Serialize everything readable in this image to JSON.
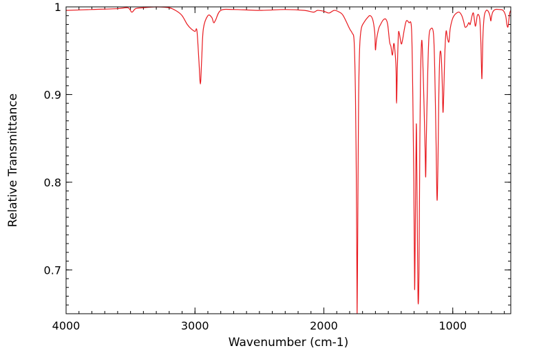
{
  "chart_data": {
    "type": "line",
    "title": "",
    "xlabel": "Wavenumber (cm-1)",
    "ylabel": "Relative Transmittance",
    "xlim": [
      4000,
      550
    ],
    "ylim": [
      0.65,
      1.0
    ],
    "x_reversed": true,
    "grid": false,
    "legend": "none",
    "x_ticks": [
      {
        "value": 4000,
        "label": "4000"
      },
      {
        "value": 3000,
        "label": "3000"
      },
      {
        "value": 2000,
        "label": "2000"
      },
      {
        "value": 1000,
        "label": "1000"
      }
    ],
    "y_ticks": [
      {
        "value": 1.0,
        "label": "1"
      },
      {
        "value": 0.9,
        "label": "0.9"
      },
      {
        "value": 0.8,
        "label": "0.8"
      },
      {
        "value": 0.7,
        "label": "0.7"
      }
    ],
    "series": [
      {
        "color": "#e8191e",
        "points": [
          [
            4000,
            0.996
          ],
          [
            3800,
            0.997
          ],
          [
            3600,
            0.998
          ],
          [
            3520,
            0.999
          ],
          [
            3490,
            0.994
          ],
          [
            3460,
            0.998
          ],
          [
            3400,
            0.999
          ],
          [
            3300,
            1.0
          ],
          [
            3200,
            0.999
          ],
          [
            3140,
            0.995
          ],
          [
            3100,
            0.99
          ],
          [
            3060,
            0.98
          ],
          [
            3030,
            0.975
          ],
          [
            3000,
            0.972
          ],
          [
            2985,
            0.973
          ],
          [
            2970,
            0.94
          ],
          [
            2958,
            0.912
          ],
          [
            2948,
            0.94
          ],
          [
            2935,
            0.975
          ],
          [
            2900,
            0.99
          ],
          [
            2870,
            0.988
          ],
          [
            2855,
            0.982
          ],
          [
            2840,
            0.985
          ],
          [
            2800,
            0.996
          ],
          [
            2700,
            0.997
          ],
          [
            2500,
            0.996
          ],
          [
            2300,
            0.997
          ],
          [
            2150,
            0.996
          ],
          [
            2080,
            0.994
          ],
          [
            2050,
            0.996
          ],
          [
            2000,
            0.995
          ],
          [
            1960,
            0.993
          ],
          [
            1920,
            0.996
          ],
          [
            1880,
            0.994
          ],
          [
            1850,
            0.99
          ],
          [
            1800,
            0.975
          ],
          [
            1780,
            0.97
          ],
          [
            1765,
            0.96
          ],
          [
            1755,
            0.9
          ],
          [
            1748,
            0.8
          ],
          [
            1744,
            0.7
          ],
          [
            1742,
            0.65
          ],
          [
            1739,
            0.7
          ],
          [
            1735,
            0.8
          ],
          [
            1730,
            0.9
          ],
          [
            1722,
            0.955
          ],
          [
            1710,
            0.975
          ],
          [
            1690,
            0.982
          ],
          [
            1660,
            0.988
          ],
          [
            1640,
            0.99
          ],
          [
            1620,
            0.985
          ],
          [
            1605,
            0.97
          ],
          [
            1600,
            0.951
          ],
          [
            1592,
            0.962
          ],
          [
            1575,
            0.975
          ],
          [
            1560,
            0.98
          ],
          [
            1540,
            0.985
          ],
          [
            1520,
            0.986
          ],
          [
            1505,
            0.98
          ],
          [
            1490,
            0.96
          ],
          [
            1480,
            0.955
          ],
          [
            1468,
            0.945
          ],
          [
            1458,
            0.958
          ],
          [
            1450,
            0.952
          ],
          [
            1440,
            0.93
          ],
          [
            1436,
            0.89
          ],
          [
            1430,
            0.93
          ],
          [
            1422,
            0.968
          ],
          [
            1415,
            0.97
          ],
          [
            1400,
            0.958
          ],
          [
            1390,
            0.962
          ],
          [
            1375,
            0.975
          ],
          [
            1360,
            0.984
          ],
          [
            1340,
            0.982
          ],
          [
            1320,
            0.975
          ],
          [
            1310,
            0.9
          ],
          [
            1302,
            0.8
          ],
          [
            1296,
            0.678
          ],
          [
            1290,
            0.76
          ],
          [
            1283,
            0.866
          ],
          [
            1278,
            0.8
          ],
          [
            1272,
            0.7
          ],
          [
            1268,
            0.661
          ],
          [
            1262,
            0.7
          ],
          [
            1255,
            0.85
          ],
          [
            1250,
            0.92
          ],
          [
            1242,
            0.96
          ],
          [
            1235,
            0.95
          ],
          [
            1225,
            0.9
          ],
          [
            1215,
            0.84
          ],
          [
            1210,
            0.806
          ],
          [
            1205,
            0.85
          ],
          [
            1195,
            0.92
          ],
          [
            1185,
            0.965
          ],
          [
            1170,
            0.975
          ],
          [
            1150,
            0.97
          ],
          [
            1140,
            0.93
          ],
          [
            1130,
            0.85
          ],
          [
            1122,
            0.78
          ],
          [
            1115,
            0.82
          ],
          [
            1108,
            0.9
          ],
          [
            1100,
            0.945
          ],
          [
            1090,
            0.945
          ],
          [
            1082,
            0.915
          ],
          [
            1076,
            0.88
          ],
          [
            1070,
            0.9
          ],
          [
            1062,
            0.945
          ],
          [
            1052,
            0.972
          ],
          [
            1042,
            0.965
          ],
          [
            1030,
            0.96
          ],
          [
            1020,
            0.975
          ],
          [
            1005,
            0.985
          ],
          [
            990,
            0.99
          ],
          [
            970,
            0.993
          ],
          [
            950,
            0.994
          ],
          [
            930,
            0.99
          ],
          [
            915,
            0.983
          ],
          [
            905,
            0.977
          ],
          [
            890,
            0.978
          ],
          [
            875,
            0.982
          ],
          [
            865,
            0.98
          ],
          [
            850,
            0.99
          ],
          [
            840,
            0.993
          ],
          [
            832,
            0.985
          ],
          [
            825,
            0.978
          ],
          [
            818,
            0.982
          ],
          [
            810,
            0.99
          ],
          [
            800,
            0.991
          ],
          [
            790,
            0.985
          ],
          [
            782,
            0.96
          ],
          [
            778,
            0.935
          ],
          [
            774,
            0.918
          ],
          [
            770,
            0.94
          ],
          [
            765,
            0.97
          ],
          [
            755,
            0.99
          ],
          [
            740,
            0.996
          ],
          [
            725,
            0.995
          ],
          [
            712,
            0.99
          ],
          [
            705,
            0.984
          ],
          [
            700,
            0.988
          ],
          [
            690,
            0.994
          ],
          [
            670,
            0.997
          ],
          [
            640,
            0.997
          ],
          [
            610,
            0.996
          ],
          [
            590,
            0.99
          ],
          [
            580,
            0.98
          ],
          [
            572,
            0.977
          ],
          [
            565,
            0.985
          ],
          [
            558,
            0.993
          ],
          [
            550,
            0.996
          ]
        ]
      }
    ]
  }
}
